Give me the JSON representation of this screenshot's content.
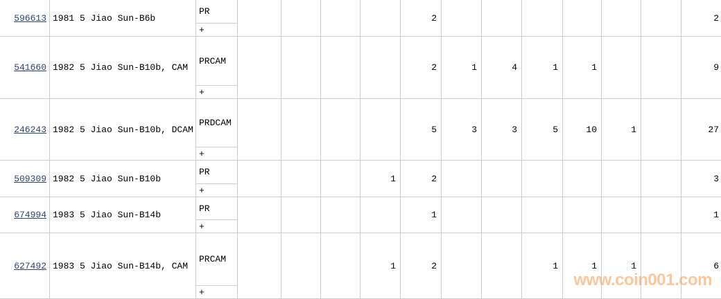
{
  "watermark": "www.coin001.com",
  "colors": {
    "grid": "#c8ced4",
    "link": "#2c4477",
    "watermark": "#f69a4d"
  },
  "table": {
    "plus_label": "+",
    "num_columns": 12,
    "rows": [
      {
        "id": "596613",
        "desc": "1981 5 Jiao Sun-B6b",
        "grade": "PR",
        "values": [
          "",
          "",
          "",
          "",
          "2",
          "",
          "",
          "",
          "",
          "",
          "",
          "2"
        ]
      },
      {
        "id": "541660",
        "desc": "1982 5 Jiao Sun-B10b, CAM",
        "grade": "PRCAM",
        "values": [
          "",
          "",
          "",
          "",
          "2",
          "1",
          "4",
          "1",
          "1",
          "",
          "",
          "9"
        ]
      },
      {
        "id": "246243",
        "desc": "1982 5 Jiao Sun-B10b, DCAM",
        "grade": "PRDCAM",
        "values": [
          "",
          "",
          "",
          "",
          "5",
          "3",
          "3",
          "5",
          "10",
          "1",
          "",
          "27"
        ]
      },
      {
        "id": "509309",
        "desc": "1982 5 Jiao Sun-B10b",
        "grade": "PR",
        "values": [
          "",
          "",
          "",
          "1",
          "2",
          "",
          "",
          "",
          "",
          "",
          "",
          "3"
        ]
      },
      {
        "id": "674994",
        "desc": "1983 5 Jiao Sun-B14b",
        "grade": "PR",
        "values": [
          "",
          "",
          "",
          "",
          "1",
          "",
          "",
          "",
          "",
          "",
          "",
          "1"
        ]
      },
      {
        "id": "627492",
        "desc": "1983 5 Jiao Sun-B14b, CAM",
        "grade": "PRCAM",
        "values": [
          "",
          "",
          "",
          "1",
          "2",
          "",
          "",
          "1",
          "1",
          "1",
          "",
          "6"
        ]
      }
    ]
  }
}
